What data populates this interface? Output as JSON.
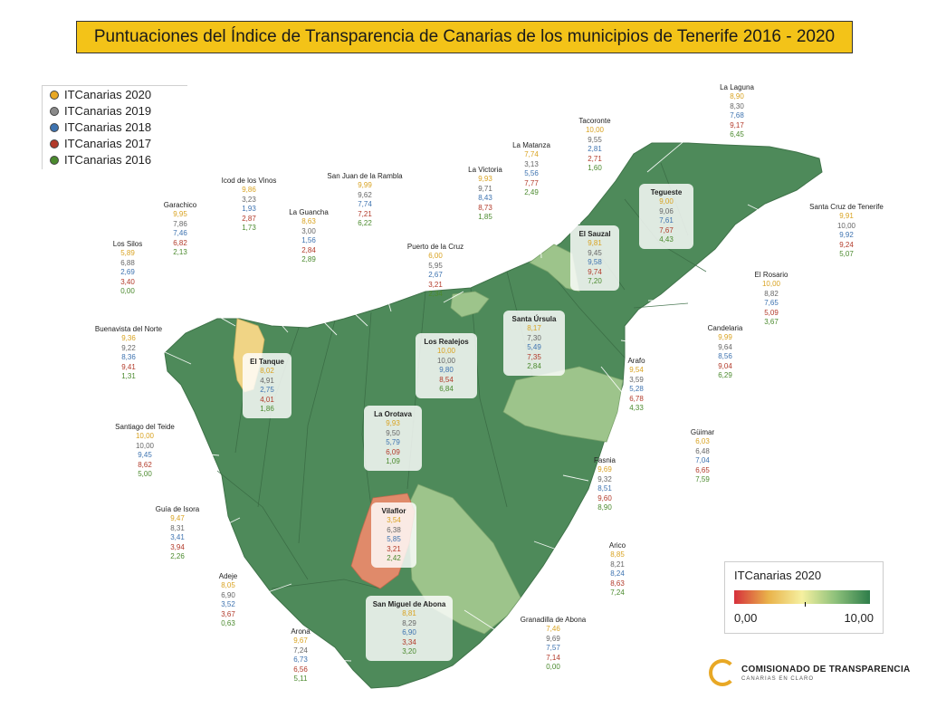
{
  "title": "Puntuaciones del Índice de Transparencia de Canarias de los municipios de Tenerife 2016 - 2020",
  "legend": {
    "items": [
      {
        "label": "ITCanarias 2020",
        "color": "#e8a825"
      },
      {
        "label": "ITCanarias 2019",
        "color": "#8a8a8a"
      },
      {
        "label": "ITCanarias 2018",
        "color": "#3e73b0"
      },
      {
        "label": "ITCanarias 2017",
        "color": "#b23a2a"
      },
      {
        "label": "ITCanarias 2016",
        "color": "#4b8a2e"
      }
    ]
  },
  "scale": {
    "title": "ITCanarias 2020",
    "min": "0,00",
    "max": "10,00"
  },
  "logo": {
    "line1": "COMISIONADO DE TRANSPARENCIA",
    "line2": "CANARIAS EN CLARO"
  },
  "municipalities": [
    {
      "name": "La Laguna",
      "values": [
        "8,90",
        "8,30",
        "7,68",
        "9,17",
        "6,45"
      ]
    },
    {
      "name": "Tacoronte",
      "values": [
        "10,00",
        "9,55",
        "2,81",
        "2,71",
        "1,60"
      ]
    },
    {
      "name": "La Matanza",
      "values": [
        "7,74",
        "3,13",
        "5,56",
        "7,77",
        "2,49"
      ]
    },
    {
      "name": "La Victoria",
      "values": [
        "9,93",
        "9,71",
        "8,43",
        "8,73",
        "1,85"
      ]
    },
    {
      "name": "San Juan de la Rambla",
      "values": [
        "9,99",
        "9,62",
        "7,74",
        "7,21",
        "6,22"
      ]
    },
    {
      "name": "Icod de los Vinos",
      "values": [
        "9,86",
        "3,23",
        "1,93",
        "2,87",
        "1,73"
      ]
    },
    {
      "name": "La Guancha",
      "values": [
        "8,63",
        "3,00",
        "1,56",
        "2,84",
        "2,89"
      ]
    },
    {
      "name": "Garachico",
      "values": [
        "9,95",
        "7,86",
        "7,46",
        "6,82",
        "2,13"
      ]
    },
    {
      "name": "Los Silos",
      "values": [
        "5,89",
        "6,88",
        "2,69",
        "3,40",
        "0,00"
      ]
    },
    {
      "name": "Buenavista del Norte",
      "values": [
        "9,36",
        "9,22",
        "8,36",
        "9,41",
        "1,31"
      ]
    },
    {
      "name": "Santiago del Teide",
      "values": [
        "10,00",
        "10,00",
        "9,45",
        "8,62",
        "5,00"
      ]
    },
    {
      "name": "Guía de Isora",
      "values": [
        "9,47",
        "8,31",
        "3,41",
        "3,94",
        "2,26"
      ]
    },
    {
      "name": "Adeje",
      "values": [
        "8,05",
        "6,90",
        "3,52",
        "3,67",
        "0,63"
      ]
    },
    {
      "name": "Arona",
      "values": [
        "9,67",
        "7,24",
        "6,73",
        "6,56",
        "5,11"
      ]
    },
    {
      "name": "Puerto de la Cruz",
      "values": [
        "6,00",
        "5,95",
        "2,67",
        "3,21",
        "2,34"
      ]
    },
    {
      "name": "Santa Cruz de Tenerife",
      "values": [
        "9,91",
        "10,00",
        "9,92",
        "9,24",
        "5,07"
      ]
    },
    {
      "name": "El Rosario",
      "values": [
        "10,00",
        "8,82",
        "7,65",
        "5,09",
        "3,67"
      ]
    },
    {
      "name": "Candelaria",
      "values": [
        "9,99",
        "9,64",
        "8,56",
        "9,04",
        "6,29"
      ]
    },
    {
      "name": "Arafo",
      "values": [
        "9,54",
        "3,59",
        "5,28",
        "6,78",
        "4,33"
      ]
    },
    {
      "name": "Güimar",
      "values": [
        "6,03",
        "6,48",
        "7,04",
        "6,65",
        "7,59"
      ]
    },
    {
      "name": "Fasnia",
      "values": [
        "9,69",
        "9,32",
        "8,51",
        "9,60",
        "8,90"
      ]
    },
    {
      "name": "Arico",
      "values": [
        "8,85",
        "8,21",
        "8,24",
        "8,63",
        "7,24"
      ]
    },
    {
      "name": "Granadilla de Abona",
      "values": [
        "7,46",
        "9,69",
        "7,57",
        "7,14",
        "0,00"
      ]
    },
    {
      "name": "Tegueste",
      "values": [
        "9,00",
        "9,06",
        "7,61",
        "7,67",
        "4,43"
      ]
    },
    {
      "name": "El Sauzal",
      "values": [
        "9,81",
        "9,45",
        "9,58",
        "9,74",
        "7,20"
      ]
    },
    {
      "name": "Santa Úrsula",
      "values": [
        "8,17",
        "7,30",
        "5,49",
        "7,35",
        "2,84"
      ]
    },
    {
      "name": "Los Realejos",
      "values": [
        "10,00",
        "10,00",
        "9,80",
        "8,54",
        "6,84"
      ]
    },
    {
      "name": "El Tanque",
      "values": [
        "8,02",
        "4,91",
        "2,75",
        "4,01",
        "1,86"
      ]
    },
    {
      "name": "La Orotava",
      "values": [
        "9,93",
        "9,50",
        "5,79",
        "6,09",
        "1,09"
      ]
    },
    {
      "name": "Vilaflor",
      "values": [
        "3,54",
        "6,38",
        "5,85",
        "3,21",
        "2,42"
      ]
    },
    {
      "name": "San Miguel de Abona",
      "values": [
        "8,81",
        "8,29",
        "6,90",
        "3,34",
        "3,20"
      ]
    }
  ]
}
